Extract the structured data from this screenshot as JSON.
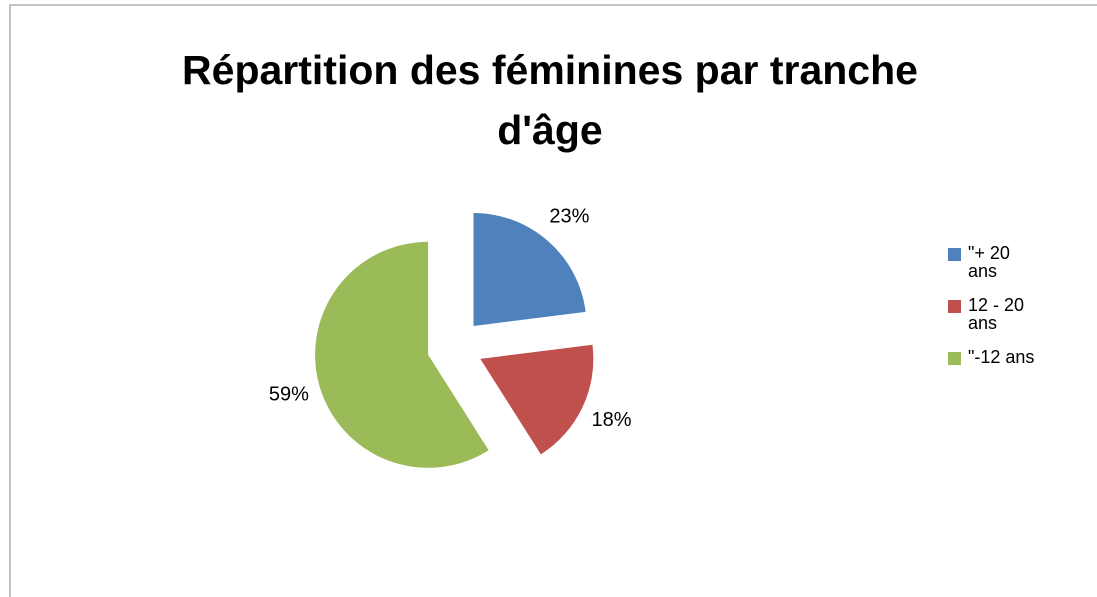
{
  "chart_data": {
    "type": "pie",
    "title": "Répartition des féminines par tranche d'âge",
    "categories": [
      "\"+ 20 ans",
      "12 - 20 ans",
      "\"-12 ans"
    ],
    "values": [
      23,
      18,
      59
    ],
    "value_labels": [
      "23%",
      "18%",
      "59%"
    ],
    "colors": [
      "#4f81bd",
      "#c0504d",
      "#9bbb59"
    ],
    "legend": "right"
  }
}
